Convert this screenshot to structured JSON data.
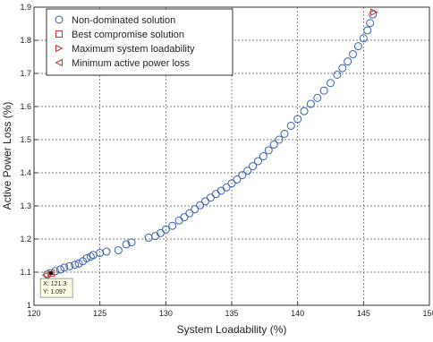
{
  "chart_data": {
    "type": "scatter",
    "xlabel": "System Loadability (%)",
    "ylabel": "Active Power Loss (%)",
    "xlim": [
      120,
      150
    ],
    "ylim": [
      1.0,
      1.9
    ],
    "grid": true,
    "x_ticks": [
      "120",
      "125",
      "130",
      "135",
      "140",
      "145",
      "150"
    ],
    "y_ticks": [
      "1",
      "1.1",
      "1.2",
      "1.3",
      "1.4",
      "1.5",
      "1.6",
      "1.7",
      "1.8",
      "1.9"
    ],
    "legend_position": "top-left",
    "legend": [
      {
        "label": "Non-dominated solution",
        "marker": "circle",
        "color": "#3a5fb0"
      },
      {
        "label": "Best compromise solution",
        "marker": "square",
        "color": "#c0392b"
      },
      {
        "label": "Maximum system loadability",
        "marker": "triangle-right",
        "color": "#c0392b"
      },
      {
        "label": "Minimum active power loss",
        "marker": "triangle-left",
        "color": "#c0392b"
      }
    ],
    "series": [
      {
        "name": "Non-dominated solution",
        "marker": "circle",
        "color": "#3a5fb0",
        "points": [
          [
            121.0,
            1.093
          ],
          [
            121.6,
            1.103
          ],
          [
            122.0,
            1.108
          ],
          [
            122.3,
            1.114
          ],
          [
            122.7,
            1.118
          ],
          [
            123.1,
            1.122
          ],
          [
            123.4,
            1.126
          ],
          [
            123.7,
            1.133
          ],
          [
            124.0,
            1.142
          ],
          [
            124.3,
            1.147
          ],
          [
            124.5,
            1.152
          ],
          [
            125.0,
            1.158
          ],
          [
            125.5,
            1.162
          ],
          [
            126.4,
            1.166
          ],
          [
            127.0,
            1.184
          ],
          [
            127.4,
            1.19
          ],
          [
            128.7,
            1.204
          ],
          [
            129.2,
            1.209
          ],
          [
            129.6,
            1.218
          ],
          [
            130.0,
            1.229
          ],
          [
            130.5,
            1.24
          ],
          [
            131.0,
            1.256
          ],
          [
            131.4,
            1.266
          ],
          [
            131.8,
            1.278
          ],
          [
            132.2,
            1.29
          ],
          [
            132.6,
            1.302
          ],
          [
            133.0,
            1.314
          ],
          [
            133.4,
            1.325
          ],
          [
            133.8,
            1.336
          ],
          [
            134.2,
            1.346
          ],
          [
            134.6,
            1.356
          ],
          [
            135.0,
            1.368
          ],
          [
            135.4,
            1.38
          ],
          [
            135.8,
            1.393
          ],
          [
            136.2,
            1.406
          ],
          [
            136.6,
            1.42
          ],
          [
            137.0,
            1.435
          ],
          [
            137.4,
            1.45
          ],
          [
            137.8,
            1.468
          ],
          [
            138.2,
            1.485
          ],
          [
            138.6,
            1.5
          ],
          [
            139.0,
            1.518
          ],
          [
            139.5,
            1.542
          ],
          [
            140.0,
            1.562
          ],
          [
            140.5,
            1.586
          ],
          [
            141.0,
            1.608
          ],
          [
            141.5,
            1.626
          ],
          [
            142.0,
            1.648
          ],
          [
            142.5,
            1.671
          ],
          [
            143.0,
            1.696
          ],
          [
            143.4,
            1.716
          ],
          [
            143.8,
            1.736
          ],
          [
            144.2,
            1.758
          ],
          [
            144.6,
            1.782
          ],
          [
            145.0,
            1.806
          ],
          [
            145.3,
            1.83
          ],
          [
            145.5,
            1.852
          ],
          [
            145.7,
            1.878
          ]
        ]
      },
      {
        "name": "Best compromise solution",
        "marker": "square",
        "color": "#c0392b",
        "points": [
          [
            121.3,
            1.097
          ]
        ]
      },
      {
        "name": "Maximum system loadability",
        "marker": "triangle-right",
        "color": "#c0392b",
        "points": [
          [
            145.8,
            1.885
          ]
        ]
      },
      {
        "name": "Minimum active power loss",
        "marker": "triangle-left",
        "color": "#c0392b",
        "points": [
          [
            120.9,
            1.091
          ]
        ]
      }
    ],
    "datatip": {
      "x_text": "X: 121.3",
      "y_text": "Y: 1.097",
      "anchor": [
        121.3,
        1.097
      ]
    }
  }
}
